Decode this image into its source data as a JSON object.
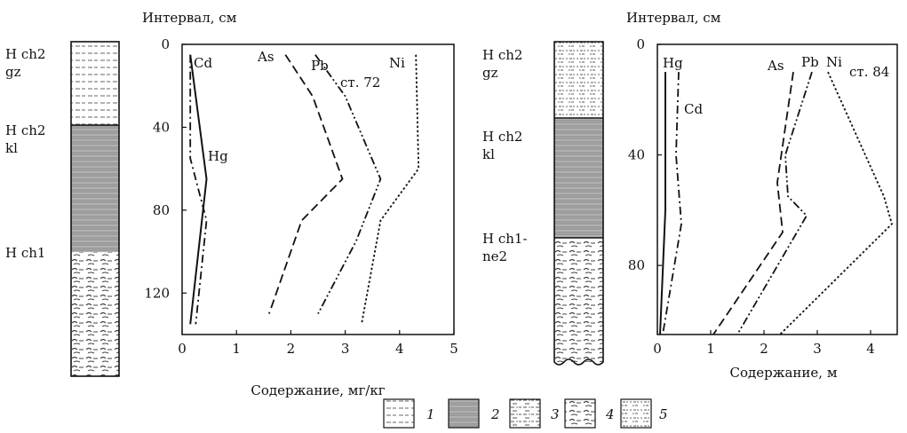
{
  "chart_data": [
    {
      "type": "line",
      "station_label": "ст. 72",
      "y_title": "Интервал, см",
      "x_title": "Содержание, мг/кг",
      "xlim": [
        0,
        5
      ],
      "ylim": [
        0,
        140
      ],
      "y_inverted": true,
      "xticks": [
        0,
        1,
        2,
        3,
        4,
        5
      ],
      "yticks": [
        0,
        40,
        80,
        120
      ],
      "series": [
        {
          "name": "Cd",
          "style": "solid",
          "points": [
            [
              0.15,
              5
            ],
            [
              0.45,
              65
            ],
            [
              0.15,
              135
            ]
          ]
        },
        {
          "name": "Hg",
          "style": "dashdot",
          "points": [
            [
              0.15,
              5
            ],
            [
              0.15,
              55
            ],
            [
              0.45,
              85
            ],
            [
              0.25,
              135
            ]
          ]
        },
        {
          "name": "As",
          "style": "dashed",
          "points": [
            [
              1.9,
              5
            ],
            [
              2.4,
              25
            ],
            [
              2.95,
              65
            ],
            [
              2.2,
              85
            ],
            [
              1.6,
              130
            ]
          ]
        },
        {
          "name": "Pb",
          "style": "dashdotdot",
          "points": [
            [
              2.45,
              5
            ],
            [
              3.0,
              25
            ],
            [
              3.65,
              65
            ],
            [
              3.2,
              95
            ],
            [
              2.5,
              130
            ]
          ]
        },
        {
          "name": "Ni",
          "style": "dotted",
          "points": [
            [
              4.3,
              5
            ],
            [
              4.35,
              60
            ],
            [
              3.65,
              85
            ],
            [
              3.3,
              135
            ]
          ]
        }
      ],
      "series_labels": [
        "Cd",
        "Hg",
        "As",
        "Pb",
        "Ni"
      ]
    },
    {
      "type": "line",
      "station_label": "ст. 84",
      "y_title": "Интервал, см",
      "x_title": "Содержание, м",
      "xlim": [
        0,
        4.5
      ],
      "ylim": [
        0,
        105
      ],
      "y_inverted": true,
      "xticks": [
        0,
        1,
        2,
        3,
        4
      ],
      "yticks": [
        0,
        40,
        80
      ],
      "series": [
        {
          "name": "Hg",
          "style": "solid",
          "points": [
            [
              0.15,
              10
            ],
            [
              0.15,
              60
            ],
            [
              0.05,
              105
            ]
          ]
        },
        {
          "name": "Cd",
          "style": "dashdot",
          "points": [
            [
              0.4,
              10
            ],
            [
              0.35,
              40
            ],
            [
              0.45,
              65
            ],
            [
              0.1,
              105
            ]
          ]
        },
        {
          "name": "As",
          "style": "dashed",
          "points": [
            [
              2.55,
              10
            ],
            [
              2.25,
              50
            ],
            [
              2.35,
              68
            ],
            [
              1.05,
              105
            ]
          ]
        },
        {
          "name": "Pb",
          "style": "dashdotdot",
          "points": [
            [
              2.9,
              10
            ],
            [
              2.4,
              40
            ],
            [
              2.45,
              55
            ],
            [
              2.8,
              62
            ],
            [
              1.5,
              105
            ]
          ]
        },
        {
          "name": "Ni",
          "style": "dotted",
          "points": [
            [
              3.2,
              10
            ],
            [
              4.25,
              55
            ],
            [
              4.4,
              65
            ],
            [
              2.3,
              105
            ]
          ]
        }
      ],
      "series_labels": [
        "Hg",
        "Cd",
        "As",
        "Pb",
        "Ni"
      ]
    }
  ],
  "columns": {
    "left": {
      "labels": [
        {
          "line1": "H ch2",
          "line2": "gz"
        },
        {
          "line1": "H ch2",
          "line2": "kl"
        },
        {
          "line1": "H ch1",
          "line2": ""
        }
      ]
    },
    "right": {
      "labels": [
        {
          "line1": "H ch2",
          "line2": "gz"
        },
        {
          "line1": "H ch2",
          "line2": "kl"
        },
        {
          "line1": "H ch1-",
          "line2": "ne2"
        }
      ]
    }
  },
  "legend": [
    {
      "num": "1",
      "pattern": "dashes"
    },
    {
      "num": "2",
      "pattern": "gray-banded"
    },
    {
      "num": "3",
      "pattern": "dash-dot"
    },
    {
      "num": "4",
      "pattern": "curved-dashes"
    },
    {
      "num": "5",
      "pattern": "dots"
    }
  ]
}
